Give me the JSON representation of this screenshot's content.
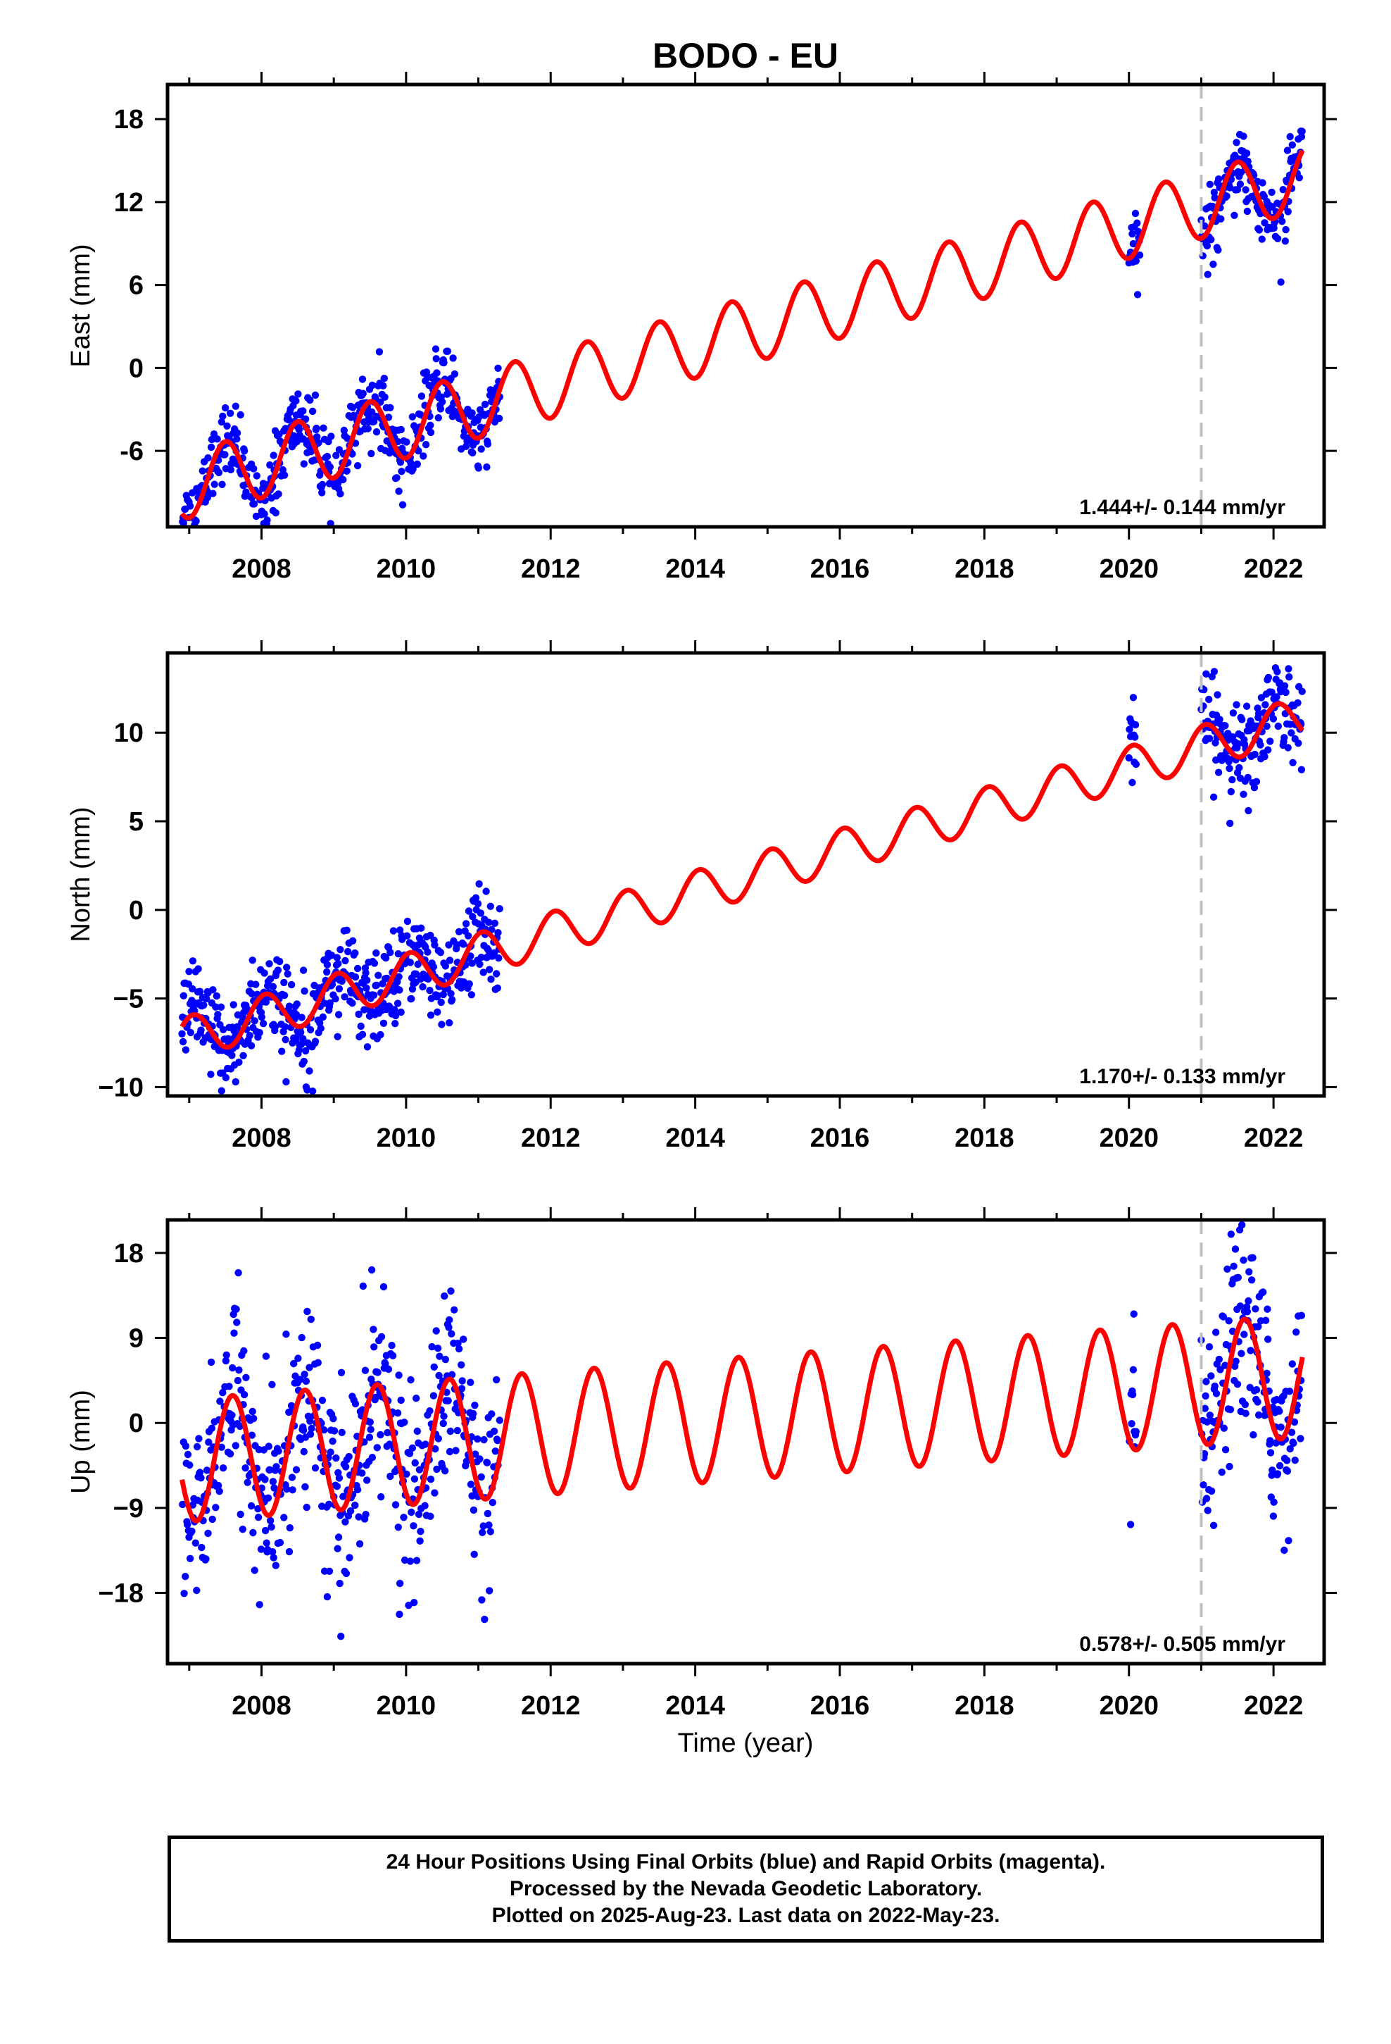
{
  "title": "BODO - EU",
  "xlabel": "Time (year)",
  "footer": {
    "line1": "24 Hour Positions Using Final Orbits (blue) and Rapid Orbits (magenta).",
    "line2": "Processed by the Nevada Geodetic Laboratory.",
    "line3": "Plotted on 2025-Aug-23. Last data on 2022-May-23."
  },
  "colors": {
    "observed": "#0000ff",
    "model": "#ff0000",
    "break_line": "#c0c0c0",
    "frame": "#000000"
  },
  "chart_data": [
    {
      "type": "scatter",
      "ylabel": "East (mm)",
      "rate_text": "1.444+/- 0.144 mm/yr",
      "xlim": [
        2006.7,
        2022.7
      ],
      "ylim": [
        -11.5,
        20.5
      ],
      "xticks": [
        2008,
        2010,
        2012,
        2014,
        2016,
        2018,
        2020,
        2022
      ],
      "yticks": [
        18,
        12,
        6,
        0,
        -6
      ],
      "ytick_labels": [
        "18",
        "12",
        "6",
        "0",
        "-6"
      ],
      "break_x": 2021.0,
      "model": {
        "intercept": -8.6,
        "t0": 2006.9,
        "rate": 1.444,
        "amp": 2.4,
        "peak_phase": 0.5,
        "offsets": [
          {
            "from": 2021.0,
            "value": 0.0
          }
        ],
        "end": 2022.4
      },
      "observations": {
        "segments": [
          [
            2006.9,
            2011.3
          ],
          [
            2020.0,
            2020.15
          ],
          [
            2021.0,
            2022.4
          ]
        ],
        "scatter": 1.3
      }
    },
    {
      "type": "scatter",
      "ylabel": "North (mm)",
      "rate_text": "1.170+/- 0.133 mm/yr",
      "xlim": [
        2006.7,
        2022.7
      ],
      "ylim": [
        -10.5,
        14.5
      ],
      "xticks": [
        2008,
        2010,
        2012,
        2014,
        2016,
        2018,
        2020,
        2022
      ],
      "yticks": [
        10,
        5,
        0,
        -5,
        -10
      ],
      "ytick_labels": [
        "10",
        "5",
        "0",
        "−5",
        "−10"
      ],
      "break_x": 2021.0,
      "model": {
        "intercept": -7.3,
        "t0": 2006.9,
        "rate": 1.17,
        "amp": 1.2,
        "peak_phase": 0.05,
        "offsets": [
          {
            "from": 2021.0,
            "value": 0.0
          }
        ],
        "end": 2022.4
      },
      "observations": {
        "segments": [
          [
            2006.9,
            2011.3
          ],
          [
            2020.0,
            2020.1
          ],
          [
            2021.0,
            2022.4
          ]
        ],
        "scatter": 1.3
      }
    },
    {
      "type": "scatter",
      "ylabel": "Up (mm)",
      "rate_text": "0.578+/- 0.505 mm/yr",
      "xlim": [
        2006.7,
        2022.7
      ],
      "ylim": [
        -25.5,
        21.5
      ],
      "xticks": [
        2008,
        2010,
        2012,
        2014,
        2016,
        2018,
        2020,
        2022
      ],
      "yticks": [
        18,
        9,
        0,
        -9,
        -18
      ],
      "ytick_labels": [
        "18",
        "9",
        "0",
        "−9",
        "−18"
      ],
      "break_x": 2021.0,
      "model": {
        "intercept": -4.0,
        "t0": 2006.9,
        "rate": 0.578,
        "amp": 6.5,
        "peak_phase": 0.6,
        "offsets": [
          {
            "from": 2021.0,
            "value": 0.0
          }
        ],
        "end": 2022.4
      },
      "observations": {
        "segments": [
          [
            2006.9,
            2011.3
          ],
          [
            2020.0,
            2020.1
          ],
          [
            2021.0,
            2022.4
          ]
        ],
        "scatter": 5.0
      }
    }
  ]
}
